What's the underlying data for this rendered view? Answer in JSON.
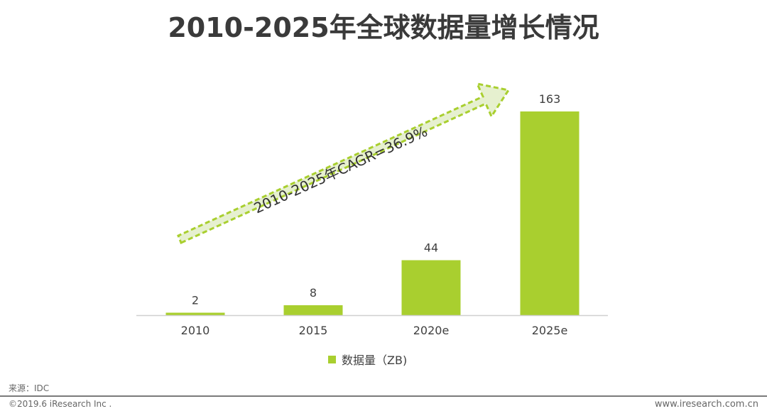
{
  "page": {
    "title": "2010-2025年全球数据量增长情况",
    "source": "来源：IDC",
    "copyright": "©2019.6 iResearch Inc .",
    "website": "www.iresearch.com.cn"
  },
  "chart_data": {
    "type": "bar",
    "title": "2010-2025年全球数据量增长情况",
    "categories": [
      "2010",
      "2015",
      "2020e",
      "2025e"
    ],
    "series": [
      {
        "name": "数据量（ZB)",
        "values": [
          2,
          8,
          44,
          163
        ]
      }
    ],
    "data_labels": [
      "2",
      "8",
      "44",
      "163"
    ],
    "xlabel": "",
    "ylabel": "",
    "ylim": [
      0,
      163
    ],
    "grid": false,
    "legend_position": "bottom",
    "annotation": "2010-2025年CAGR=36.9%",
    "colors": {
      "bar": "#a9cf2f",
      "arrow_fill": "#e6f0cf",
      "arrow_stroke": "#a9cf2f",
      "axis": "#d0d0d0"
    }
  }
}
